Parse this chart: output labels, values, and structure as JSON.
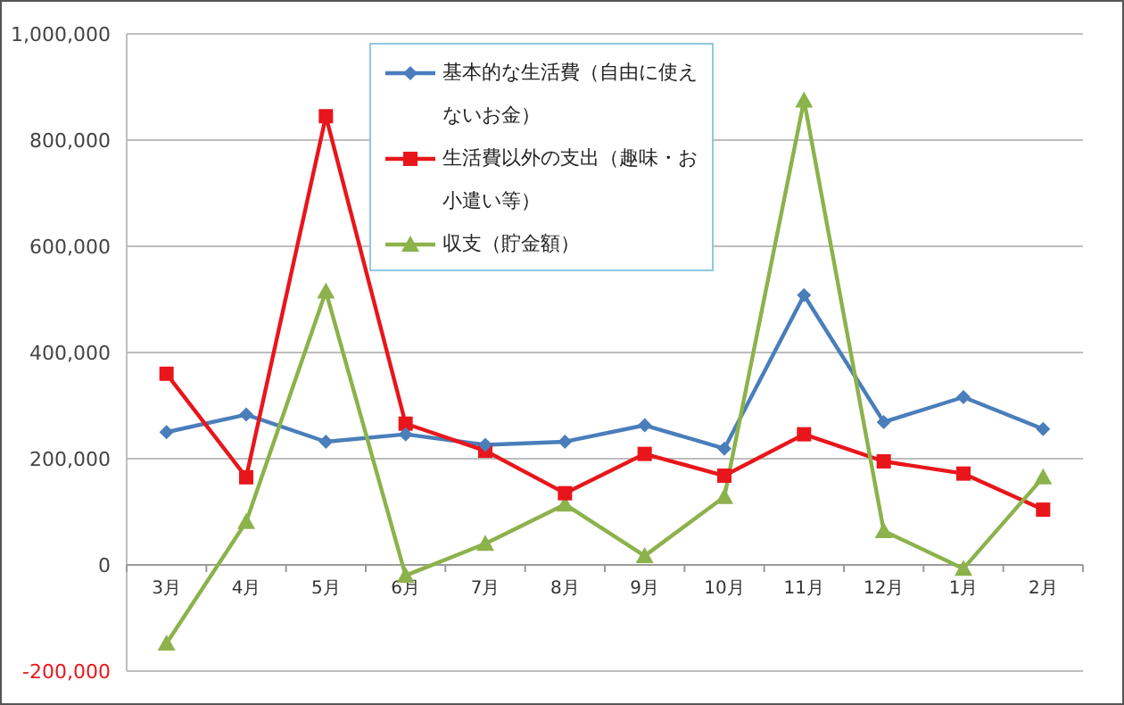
{
  "chart_data": {
    "type": "line",
    "categories": [
      "3月",
      "4月",
      "5月",
      "6月",
      "7月",
      "8月",
      "9月",
      "10月",
      "11月",
      "12月",
      "1月",
      "2月"
    ],
    "series": [
      {
        "name": "基本的な生活費（自由に使えないお金）",
        "color": "#4a7ebb",
        "marker": "diamond",
        "values": [
          250000,
          283000,
          232000,
          246000,
          226000,
          232000,
          263000,
          219000,
          508000,
          269000,
          316000,
          256000
        ]
      },
      {
        "name": "生活費以外の支出（趣味・お小遣い等）",
        "color": "#e8161b",
        "marker": "square",
        "values": [
          360000,
          165000,
          845000,
          266000,
          215000,
          135000,
          209000,
          168000,
          246000,
          195000,
          172000,
          104000
        ]
      },
      {
        "name": "収支（貯金額）",
        "color": "#8cb24b",
        "marker": "triangle",
        "values": [
          -148000,
          81000,
          515000,
          -20000,
          40000,
          114000,
          17000,
          128000,
          875000,
          64000,
          -7000,
          165000
        ]
      }
    ],
    "ylim": [
      -200000,
      1000000
    ],
    "yticks": [
      {
        "value": -200000,
        "label": "-200,000"
      },
      0,
      {
        "value": 200000,
        "label": "200,000"
      },
      {
        "value": 400000,
        "label": "400,000"
      },
      {
        "value": 600000,
        "label": "600,000"
      },
      {
        "value": 800000,
        "label": "800,000"
      },
      {
        "value": 1000000,
        "label": "1,000,000"
      }
    ],
    "grid": "y",
    "legend": "top",
    "line_style": "solid"
  }
}
